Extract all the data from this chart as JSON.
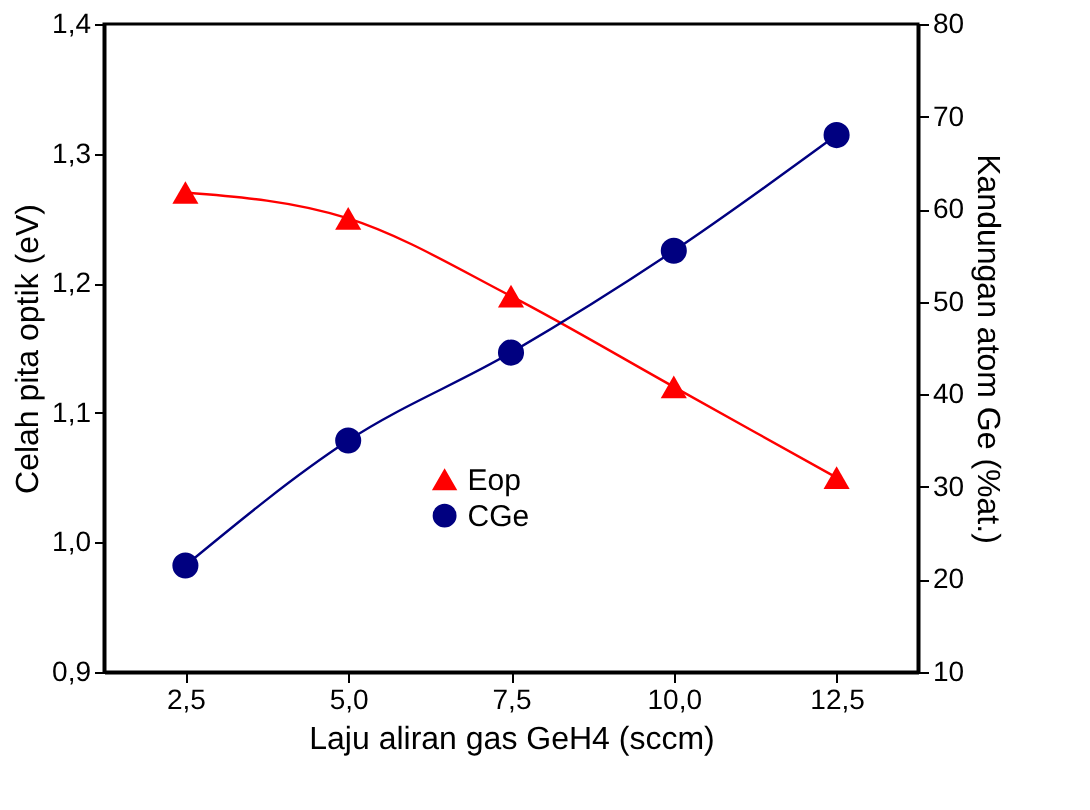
{
  "chart_data": {
    "type": "line",
    "xlabel": "Laju aliran gas GeH4 (sccm)",
    "ylabel": "Celah pita optik (eV)",
    "y2label": "Kandungan atom Ge (%at.)",
    "x": [
      2.5,
      5.0,
      7.5,
      10.0,
      12.5
    ],
    "series": [
      {
        "name": "Eop",
        "color": "#ff0000",
        "marker": "triangle",
        "values": [
          1.27,
          1.25,
          1.19,
          1.12,
          1.05
        ]
      },
      {
        "name": "CGe",
        "color": "#000080",
        "marker": "circle",
        "axis": "y2",
        "values": [
          21.5,
          35.0,
          44.5,
          55.5,
          68.0
        ]
      }
    ],
    "xlim": [
      1.25,
      13.75
    ],
    "xticks": [
      {
        "value": 2.5,
        "label": "2,5"
      },
      {
        "value": 5.0,
        "label": "5,0"
      },
      {
        "value": 7.5,
        "label": "7,5"
      },
      {
        "value": 10.0,
        "label": "10,0"
      },
      {
        "value": 12.5,
        "label": "12,5"
      }
    ],
    "ylim": [
      0.9,
      1.4
    ],
    "yticks": [
      {
        "value": 0.9,
        "label": "0,9"
      },
      {
        "value": 1.0,
        "label": "1,0"
      },
      {
        "value": 1.1,
        "label": "1,1"
      },
      {
        "value": 1.2,
        "label": "1,2"
      },
      {
        "value": 1.3,
        "label": "1,3"
      },
      {
        "value": 1.4,
        "label": "1,4"
      }
    ],
    "y2lim": [
      10,
      80
    ],
    "y2ticks": [
      10,
      20,
      30,
      40,
      50,
      60,
      70,
      80
    ],
    "grid": false,
    "legend": "bottom",
    "line_style": "solid"
  }
}
